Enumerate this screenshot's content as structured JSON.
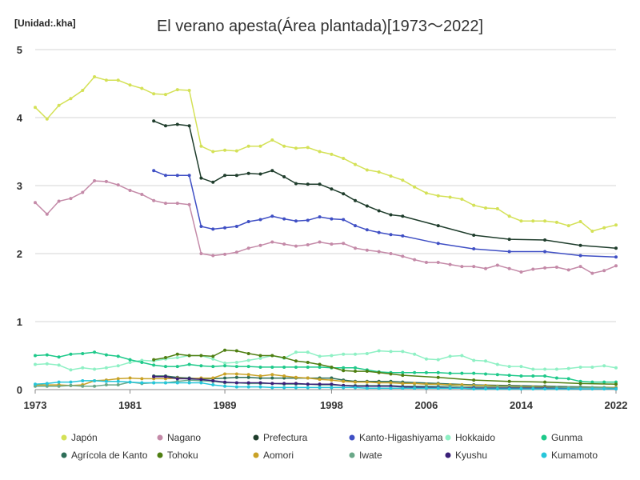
{
  "header": {
    "unit": "[Unidad:.kha]"
  },
  "chart_data": {
    "type": "line",
    "title": "El verano apesta(Área plantada)[1973～2022]",
    "xlabel": "",
    "ylabel": "",
    "xlim": [
      1973,
      2022
    ],
    "ylim": [
      0,
      5
    ],
    "x_ticks": [
      1973,
      1981,
      1989,
      1998,
      2006,
      2014,
      2022
    ],
    "y_ticks": [
      0,
      1,
      2,
      3,
      4,
      5
    ],
    "grid": "horizontal",
    "legend_position": "bottom",
    "series": [
      {
        "name": "Japón",
        "color": "#d4e157",
        "x": [
          1973,
          1974,
          1975,
          1976,
          1977,
          1978,
          1979,
          1980,
          1981,
          1982,
          1983,
          1984,
          1985,
          1986,
          1987,
          1988,
          1989,
          1990,
          1991,
          1992,
          1993,
          1994,
          1995,
          1996,
          1997,
          1998,
          1999,
          2000,
          2001,
          2002,
          2003,
          2004,
          2005,
          2006,
          2007,
          2008,
          2009,
          2010,
          2011,
          2012,
          2013,
          2014,
          2015,
          2016,
          2017,
          2018,
          2019,
          2020,
          2021,
          2022
        ],
        "values": [
          4.15,
          3.98,
          4.18,
          4.28,
          4.4,
          4.6,
          4.55,
          4.55,
          4.48,
          4.43,
          4.35,
          4.34,
          4.41,
          4.4,
          3.58,
          3.5,
          3.52,
          3.51,
          3.58,
          3.58,
          3.67,
          3.58,
          3.55,
          3.56,
          3.5,
          3.46,
          3.4,
          3.31,
          3.23,
          3.2,
          3.14,
          3.08,
          2.98,
          2.89,
          2.85,
          2.83,
          2.8,
          2.71,
          2.67,
          2.66,
          2.55,
          2.48,
          2.48,
          2.48,
          2.46,
          2.41,
          2.47,
          2.33,
          2.38,
          2.42
        ]
      },
      {
        "name": "Nagano",
        "color": "#c48aa8",
        "x": [
          1973,
          1974,
          1975,
          1976,
          1977,
          1978,
          1979,
          1980,
          1981,
          1982,
          1983,
          1984,
          1985,
          1986,
          1987,
          1988,
          1989,
          1990,
          1991,
          1992,
          1993,
          1994,
          1995,
          1996,
          1997,
          1998,
          1999,
          2000,
          2001,
          2002,
          2003,
          2004,
          2005,
          2006,
          2007,
          2008,
          2009,
          2010,
          2011,
          2012,
          2013,
          2014,
          2015,
          2016,
          2017,
          2018,
          2019,
          2020,
          2021,
          2022
        ],
        "values": [
          2.75,
          2.58,
          2.77,
          2.81,
          2.9,
          3.07,
          3.06,
          3.01,
          2.93,
          2.87,
          2.78,
          2.74,
          2.74,
          2.72,
          2.0,
          1.97,
          1.99,
          2.02,
          2.08,
          2.12,
          2.17,
          2.14,
          2.11,
          2.13,
          2.17,
          2.14,
          2.15,
          2.08,
          2.05,
          2.03,
          2.0,
          1.96,
          1.91,
          1.87,
          1.87,
          1.84,
          1.81,
          1.81,
          1.78,
          1.83,
          1.78,
          1.73,
          1.77,
          1.79,
          1.8,
          1.76,
          1.81,
          1.71,
          1.75,
          1.82
        ]
      },
      {
        "name": "Prefectura",
        "color": "#1f3d2c",
        "x": [
          1983,
          1984,
          1985,
          1986,
          1987,
          1988,
          1989,
          1990,
          1991,
          1992,
          1993,
          1994,
          1995,
          1996,
          1997,
          1998,
          1999,
          2000,
          2001,
          2002,
          2003,
          2004,
          2007,
          2010,
          2013,
          2016,
          2019,
          2022
        ],
        "values": [
          3.95,
          3.88,
          3.9,
          3.88,
          3.11,
          3.05,
          3.15,
          3.15,
          3.18,
          3.17,
          3.22,
          3.13,
          3.03,
          3.02,
          3.02,
          2.95,
          2.88,
          2.78,
          2.7,
          2.63,
          2.57,
          2.55,
          2.41,
          2.27,
          2.21,
          2.2,
          2.12,
          2.08
        ]
      },
      {
        "name": "Kanto-Higashiyama",
        "color": "#3f4fc4",
        "x": [
          1983,
          1984,
          1985,
          1986,
          1987,
          1988,
          1989,
          1990,
          1991,
          1992,
          1993,
          1994,
          1995,
          1996,
          1997,
          1998,
          1999,
          2000,
          2001,
          2002,
          2003,
          2004,
          2007,
          2010,
          2013,
          2016,
          2019,
          2022
        ],
        "values": [
          3.22,
          3.15,
          3.15,
          3.15,
          2.4,
          2.36,
          2.38,
          2.4,
          2.47,
          2.5,
          2.55,
          2.51,
          2.48,
          2.49,
          2.54,
          2.51,
          2.5,
          2.41,
          2.35,
          2.31,
          2.28,
          2.26,
          2.15,
          2.07,
          2.03,
          2.03,
          1.97,
          1.95
        ]
      },
      {
        "name": "Hokkaido",
        "color": "#8ef0c4",
        "x": [
          1973,
          1974,
          1975,
          1976,
          1977,
          1978,
          1979,
          1980,
          1981,
          1982,
          1983,
          1984,
          1985,
          1986,
          1987,
          1988,
          1989,
          1990,
          1991,
          1992,
          1993,
          1994,
          1995,
          1996,
          1997,
          1998,
          1999,
          2000,
          2001,
          2002,
          2003,
          2004,
          2005,
          2006,
          2007,
          2008,
          2009,
          2010,
          2011,
          2012,
          2013,
          2014,
          2015,
          2016,
          2017,
          2018,
          2019,
          2020,
          2021,
          2022
        ],
        "values": [
          0.37,
          0.38,
          0.36,
          0.29,
          0.32,
          0.3,
          0.32,
          0.35,
          0.4,
          0.43,
          0.42,
          0.45,
          0.47,
          0.5,
          0.5,
          0.45,
          0.39,
          0.4,
          0.43,
          0.46,
          0.5,
          0.46,
          0.55,
          0.55,
          0.49,
          0.5,
          0.52,
          0.52,
          0.53,
          0.57,
          0.56,
          0.56,
          0.52,
          0.45,
          0.44,
          0.49,
          0.5,
          0.43,
          0.42,
          0.37,
          0.34,
          0.34,
          0.3,
          0.3,
          0.3,
          0.31,
          0.33,
          0.33,
          0.35,
          0.32
        ]
      },
      {
        "name": "Gunma",
        "color": "#1ec98a",
        "x": [
          1973,
          1974,
          1975,
          1976,
          1977,
          1978,
          1979,
          1980,
          1981,
          1982,
          1983,
          1984,
          1985,
          1986,
          1987,
          1988,
          1989,
          1990,
          1991,
          1992,
          1993,
          1994,
          1995,
          1996,
          1997,
          1998,
          1999,
          2000,
          2001,
          2002,
          2003,
          2004,
          2005,
          2006,
          2007,
          2008,
          2009,
          2010,
          2011,
          2012,
          2013,
          2014,
          2015,
          2016,
          2017,
          2018,
          2019,
          2020,
          2021,
          2022
        ],
        "values": [
          0.5,
          0.51,
          0.48,
          0.52,
          0.53,
          0.55,
          0.51,
          0.49,
          0.44,
          0.4,
          0.36,
          0.34,
          0.34,
          0.37,
          0.35,
          0.34,
          0.35,
          0.34,
          0.34,
          0.33,
          0.33,
          0.33,
          0.33,
          0.33,
          0.33,
          0.32,
          0.32,
          0.32,
          0.29,
          0.26,
          0.25,
          0.25,
          0.25,
          0.25,
          0.25,
          0.24,
          0.24,
          0.24,
          0.23,
          0.22,
          0.21,
          0.2,
          0.2,
          0.2,
          0.17,
          0.16,
          0.12,
          0.11,
          0.11,
          0.11
        ]
      },
      {
        "name": "Agrícola de Kanto",
        "color": "#2e6e58",
        "x": [
          1983,
          1984,
          1985,
          1986,
          1987,
          1988,
          1989,
          1990,
          1991,
          1992,
          1993,
          1994,
          1995,
          1996,
          1997,
          1998,
          1999,
          2000,
          2001,
          2002,
          2003,
          2004,
          2007,
          2010,
          2013,
          2016,
          2019,
          2022
        ],
        "values": [
          0.2,
          0.2,
          0.18,
          0.17,
          0.16,
          0.16,
          0.17,
          0.18,
          0.18,
          0.17,
          0.17,
          0.17,
          0.17,
          0.17,
          0.17,
          0.17,
          0.14,
          0.12,
          0.12,
          0.12,
          0.12,
          0.11,
          0.09,
          0.07,
          0.06,
          0.05,
          0.04,
          0.03
        ]
      },
      {
        "name": "Tohoku",
        "color": "#4f7f12",
        "x": [
          1983,
          1984,
          1985,
          1986,
          1987,
          1988,
          1989,
          1990,
          1991,
          1992,
          1993,
          1994,
          1995,
          1996,
          1997,
          1998,
          1999,
          2000,
          2001,
          2002,
          2003,
          2004,
          2007,
          2010,
          2013,
          2016,
          2019,
          2022
        ],
        "values": [
          0.44,
          0.47,
          0.52,
          0.5,
          0.5,
          0.49,
          0.58,
          0.57,
          0.53,
          0.5,
          0.5,
          0.47,
          0.42,
          0.4,
          0.37,
          0.33,
          0.28,
          0.27,
          0.27,
          0.25,
          0.23,
          0.21,
          0.18,
          0.14,
          0.12,
          0.11,
          0.09,
          0.08
        ]
      },
      {
        "name": "Aomori",
        "color": "#c9a227",
        "x": [
          1973,
          1974,
          1975,
          1976,
          1977,
          1978,
          1979,
          1980,
          1981,
          1982,
          1983,
          1984,
          1985,
          1986,
          1987,
          1988,
          1989,
          1990,
          1991,
          1992,
          1993,
          1994,
          1995,
          1996,
          1997,
          1998,
          1999,
          2000,
          2001,
          2002,
          2003,
          2004,
          2005,
          2006,
          2007,
          2008,
          2009,
          2010,
          2011,
          2012,
          2013,
          2014,
          2015,
          2016,
          2017,
          2018,
          2019,
          2020,
          2021,
          2022
        ],
        "values": [
          0.07,
          0.07,
          0.07,
          0.06,
          0.07,
          0.13,
          0.14,
          0.16,
          0.17,
          0.16,
          0.16,
          0.16,
          0.17,
          0.16,
          0.17,
          0.17,
          0.23,
          0.23,
          0.22,
          0.2,
          0.22,
          0.2,
          0.18,
          0.17,
          0.15,
          0.14,
          0.12,
          0.11,
          0.11,
          0.1,
          0.1,
          0.09,
          0.09,
          0.08,
          0.08,
          0.07,
          0.07,
          0.06,
          0.06,
          0.05,
          0.05,
          0.04,
          0.04,
          0.04,
          0.03,
          0.03,
          0.03,
          0.03,
          0.03,
          0.03
        ]
      },
      {
        "name": "Iwate",
        "color": "#6aa888",
        "x": [
          1973,
          1974,
          1975,
          1976,
          1977,
          1978,
          1979,
          1980,
          1981,
          1982,
          1983,
          1984,
          1985,
          1986,
          1987,
          1988,
          1989,
          1990,
          1991,
          1992,
          1993,
          1994,
          1995,
          1996,
          1997,
          1998,
          1999,
          2000,
          2001,
          2002,
          2003,
          2004,
          2005,
          2006,
          2007,
          2008,
          2009,
          2010,
          2011,
          2012,
          2013,
          2014,
          2015,
          2016,
          2017,
          2018,
          2019,
          2020,
          2021,
          2022
        ],
        "values": [
          0.05,
          0.05,
          0.05,
          0.06,
          0.05,
          0.05,
          0.07,
          0.07,
          0.11,
          0.09,
          0.1,
          0.1,
          0.12,
          0.14,
          0.13,
          0.12,
          0.1,
          0.1,
          0.09,
          0.09,
          0.09,
          0.08,
          0.08,
          0.08,
          0.07,
          0.07,
          0.06,
          0.06,
          0.06,
          0.06,
          0.06,
          0.05,
          0.05,
          0.05,
          0.05,
          0.05,
          0.04,
          0.04,
          0.04,
          0.04,
          0.04,
          0.03,
          0.03,
          0.03,
          0.03,
          0.03,
          0.03,
          0.03,
          0.03,
          0.02
        ]
      },
      {
        "name": "Kyushu",
        "color": "#3a1f78",
        "x": [
          1983,
          1984,
          1985,
          1986,
          1987,
          1988,
          1989,
          1990,
          1991,
          1992,
          1993,
          1994,
          1995,
          1996,
          1997,
          1998,
          1999,
          2000,
          2001,
          2002,
          2003,
          2004,
          2007,
          2010,
          2013,
          2016,
          2019,
          2022
        ],
        "values": [
          0.19,
          0.19,
          0.16,
          0.16,
          0.15,
          0.13,
          0.11,
          0.1,
          0.1,
          0.1,
          0.09,
          0.09,
          0.09,
          0.08,
          0.08,
          0.08,
          0.06,
          0.05,
          0.05,
          0.05,
          0.05,
          0.04,
          0.03,
          0.02,
          0.02,
          0.02,
          0.01,
          0.01
        ]
      },
      {
        "name": "Kumamoto",
        "color": "#26c6da",
        "x": [
          1973,
          1974,
          1975,
          1976,
          1977,
          1978,
          1979,
          1980,
          1981,
          1982,
          1983,
          1984,
          1985,
          1986,
          1987,
          1988,
          1989,
          1990,
          1991,
          1992,
          1993,
          1994,
          1995,
          1996,
          1997,
          1998,
          1999,
          2000,
          2001,
          2002,
          2003,
          2004,
          2005,
          2006,
          2007,
          2008,
          2009,
          2010,
          2011,
          2012,
          2013,
          2014,
          2015,
          2016,
          2017,
          2018,
          2019,
          2020,
          2021,
          2022
        ],
        "values": [
          0.08,
          0.09,
          0.11,
          0.11,
          0.13,
          0.13,
          0.12,
          0.12,
          0.11,
          0.1,
          0.1,
          0.1,
          0.1,
          0.1,
          0.1,
          0.07,
          0.05,
          0.04,
          0.04,
          0.04,
          0.03,
          0.03,
          0.03,
          0.03,
          0.03,
          0.03,
          0.03,
          0.03,
          0.02,
          0.02,
          0.02,
          0.02,
          0.02,
          0.02,
          0.02,
          0.02,
          0.02,
          0.01,
          0.01,
          0.01,
          0.01,
          0.01,
          0.01,
          0.01,
          0.01,
          0.01,
          0.01,
          0.01,
          0.01,
          0.01
        ]
      }
    ]
  }
}
